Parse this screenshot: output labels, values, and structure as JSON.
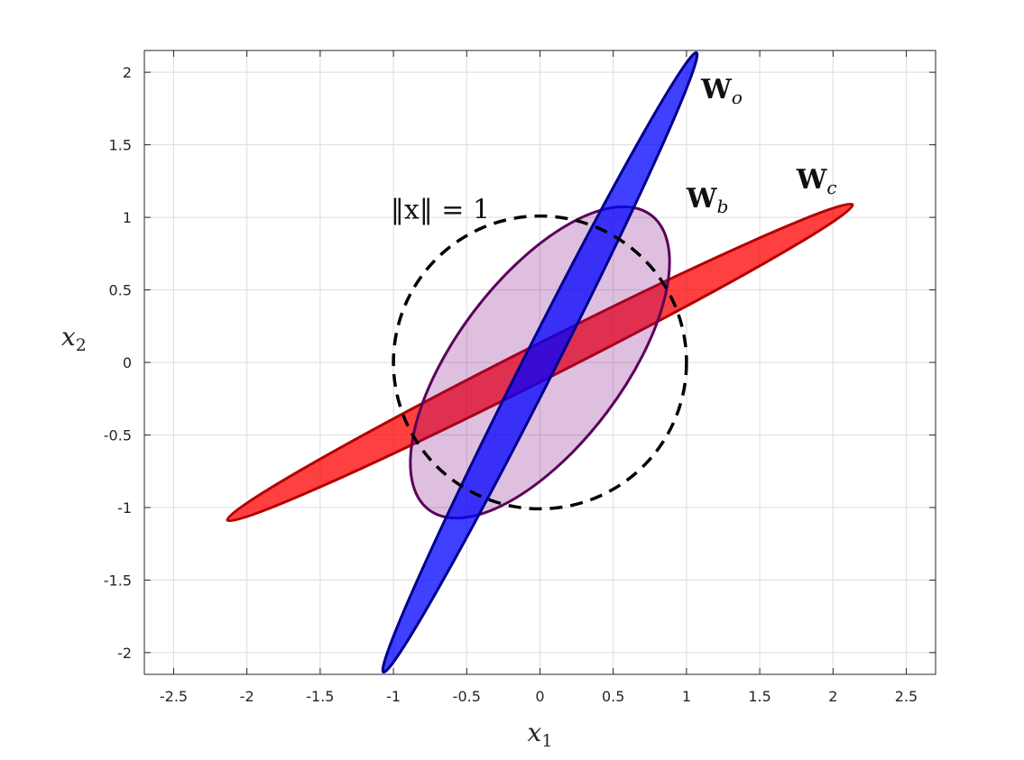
{
  "chart_data": {
    "type": "scatter",
    "title": "",
    "xlabel": "x1",
    "ylabel": "x2",
    "xlim": [
      -2.7,
      2.7
    ],
    "ylim": [
      -2.15,
      2.15
    ],
    "xticks": [
      -2.5,
      -2,
      -1.5,
      -1,
      -0.5,
      0,
      0.5,
      1,
      1.5,
      2,
      2.5
    ],
    "yticks": [
      -2,
      -1.5,
      -1,
      -0.5,
      0,
      0.5,
      1,
      1.5,
      2
    ],
    "xtick_labels": [
      "-2.5",
      "-2",
      "-1.5",
      "-1",
      "-0.5",
      "0",
      "0.5",
      "1",
      "1.5",
      "2",
      "2.5"
    ],
    "ytick_labels": [
      "-2",
      "-1.5",
      "-1",
      "-0.5",
      "0",
      "0.5",
      "1",
      "1.5",
      "2"
    ],
    "grid": true,
    "shapes": [
      {
        "name": "Wc",
        "kind": "ellipse",
        "center": [
          0,
          0
        ],
        "semi_major": 2.39,
        "semi_minor": 0.12,
        "angle_deg": 26.8,
        "fill": "#ff0000",
        "fill_opacity": 0.75,
        "stroke": "#b30000"
      },
      {
        "name": "Wb",
        "kind": "ellipse",
        "center": [
          0,
          0
        ],
        "semi_major": 1.26,
        "semi_minor": 0.57,
        "angle_deg": 53.0,
        "fill": "#800080",
        "fill_opacity": 0.25,
        "stroke": "#5a005a"
      },
      {
        "name": "Wo",
        "kind": "ellipse",
        "center": [
          0,
          0
        ],
        "semi_major": 2.37,
        "semi_minor": 0.11,
        "angle_deg": 63.2,
        "fill": "#0000ff",
        "fill_opacity": 0.75,
        "stroke": "#00008b"
      },
      {
        "name": "unit circle",
        "kind": "circle",
        "center": [
          0,
          0
        ],
        "radius": 1.0,
        "stroke": "#000000",
        "dashed": true
      }
    ],
    "annotations": [
      {
        "text_main": "W",
        "text_sub": "o",
        "x": 1.1,
        "y": 1.82
      },
      {
        "text_main": "W",
        "text_sub": "b",
        "x": 1.0,
        "y": 1.07
      },
      {
        "text_main": "W",
        "text_sub": "c",
        "x": 1.75,
        "y": 1.2
      },
      {
        "text": "‖x‖ = 1",
        "x": -1.02,
        "y": 0.99
      }
    ]
  }
}
